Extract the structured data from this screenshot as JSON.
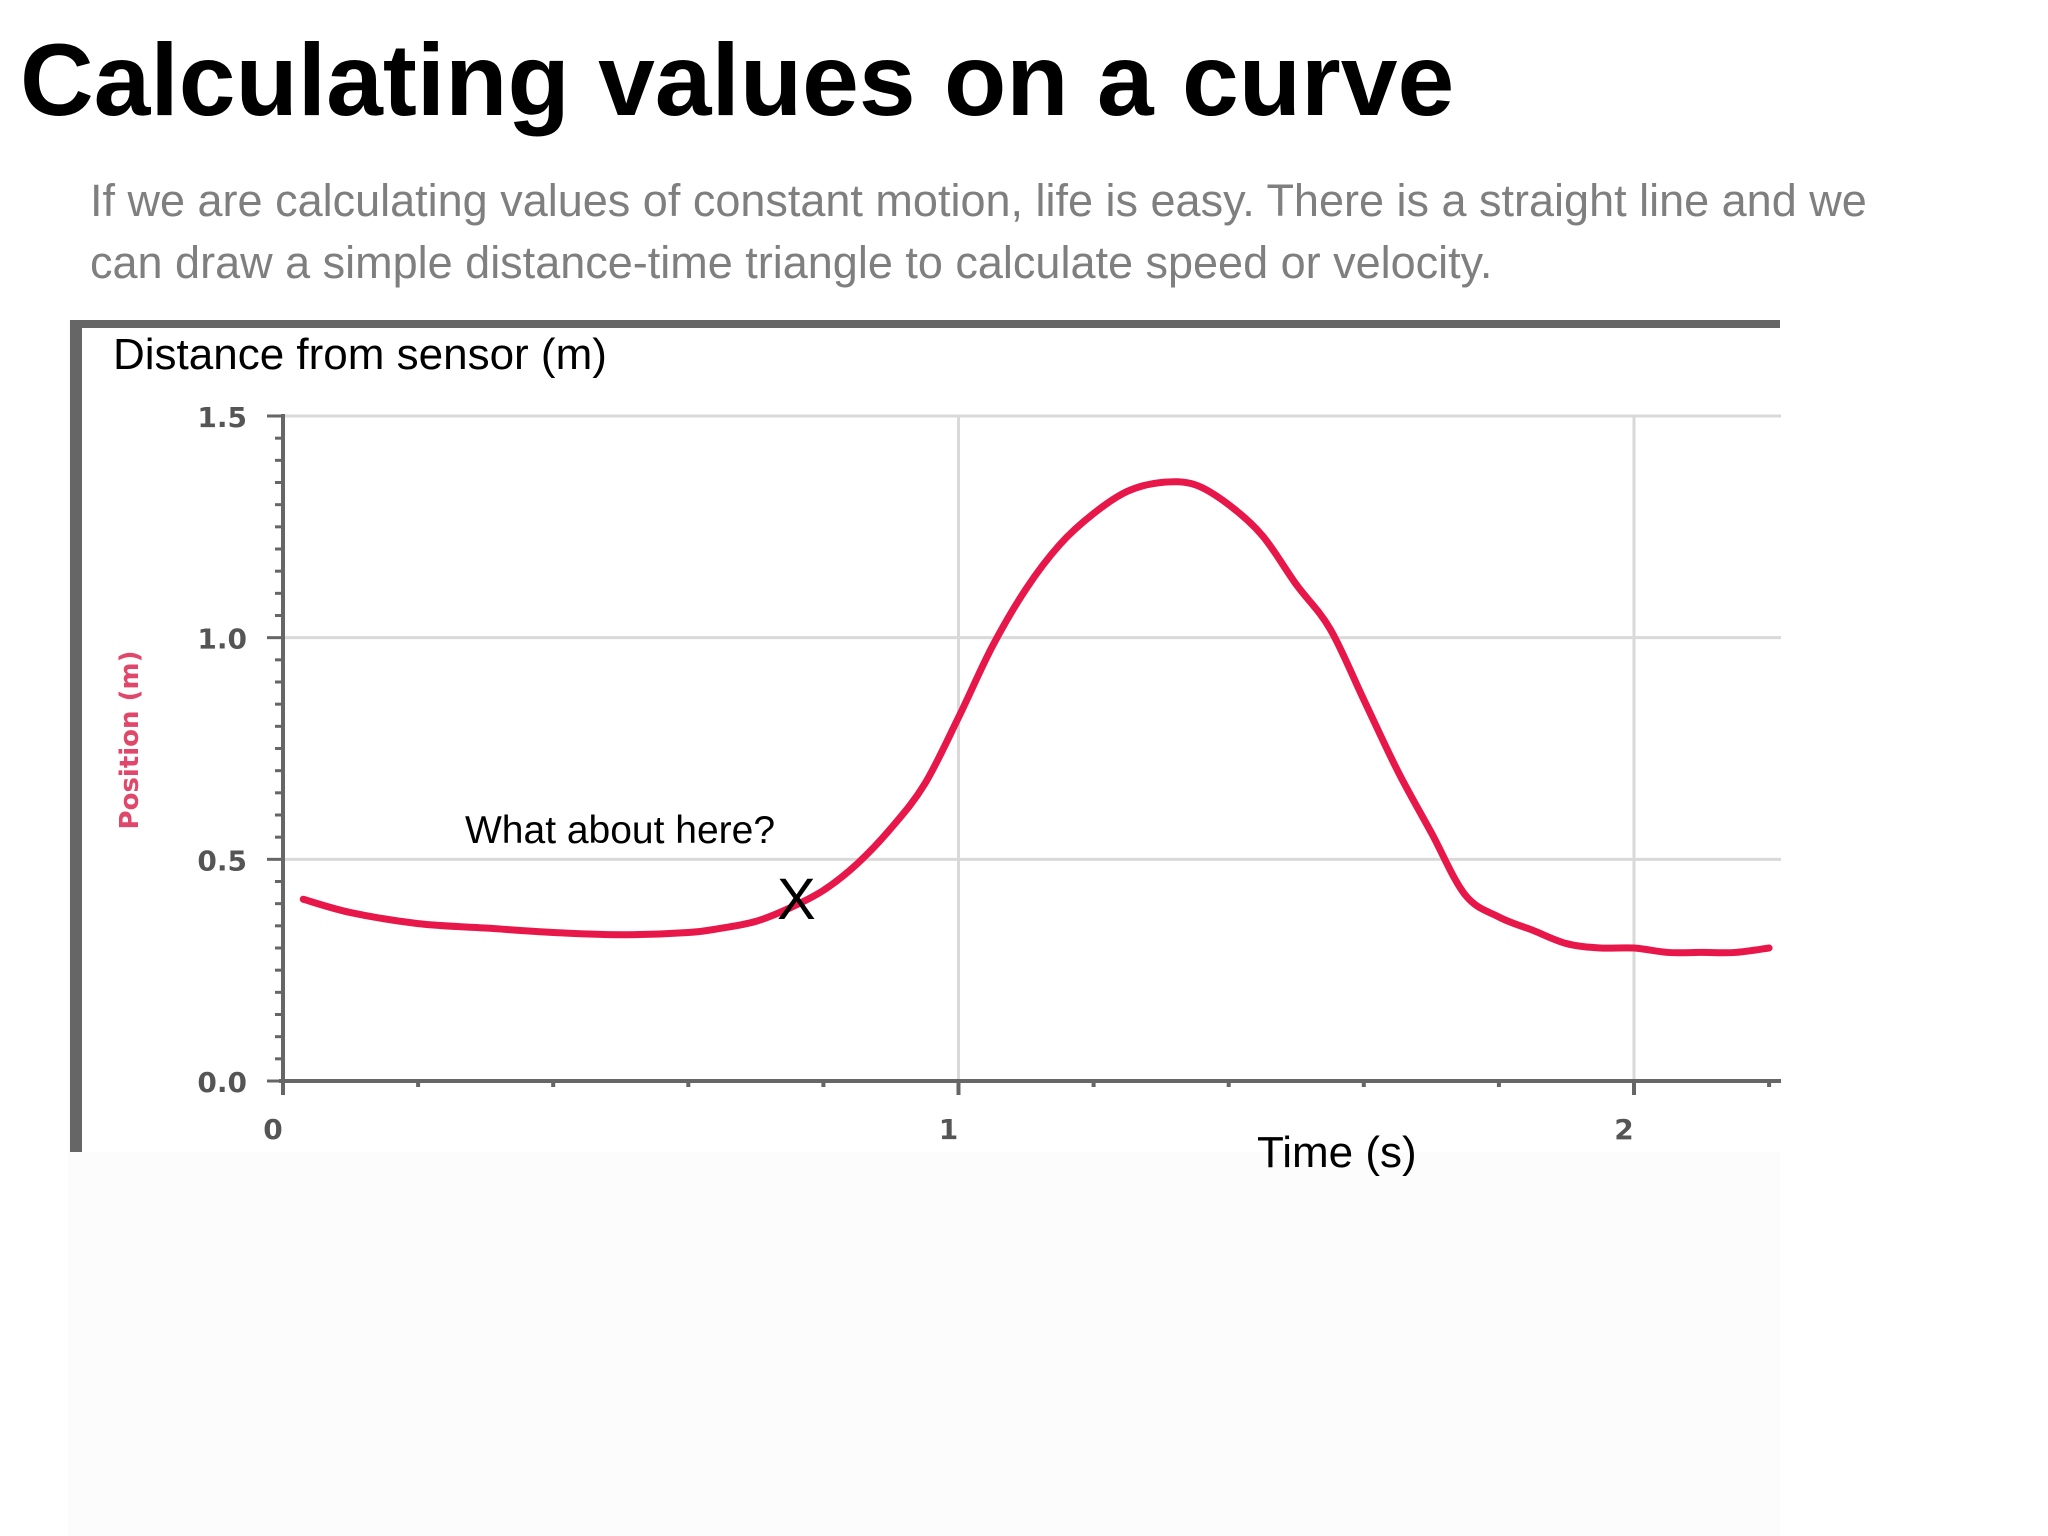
{
  "slide": {
    "title": "Calculating values on a curve",
    "body": "If we are calculating values of constant motion, life is easy. There is a straight line and we can draw a simple distance-time triangle to calculate speed or velocity."
  },
  "colors": {
    "curve": "#e8174a",
    "grid": "#d9d9d9",
    "axis": "#666666",
    "frame": "#666666",
    "body_text": "#7f7f7f"
  },
  "chart_data": {
    "type": "line",
    "xlabel": "Time (s)",
    "ylabel": "Position (m)",
    "overlay_ylabel": "Distance from sensor (m)",
    "xlim": [
      0,
      2.2
    ],
    "ylim": [
      0,
      1.5
    ],
    "x_ticks": [
      "0",
      "1",
      "2"
    ],
    "y_ticks": [
      "0.0",
      "0.5",
      "1.0",
      "1.5"
    ],
    "grid": true,
    "series": [
      {
        "x": [
          0.03,
          0.1,
          0.2,
          0.3,
          0.4,
          0.5,
          0.6,
          0.65,
          0.7,
          0.75,
          0.8,
          0.85,
          0.9,
          0.95,
          1.0,
          1.05,
          1.1,
          1.15,
          1.2,
          1.25,
          1.3,
          1.35,
          1.4,
          1.45,
          1.5,
          1.55,
          1.6,
          1.65,
          1.7,
          1.75,
          1.8,
          1.85,
          1.9,
          1.95,
          2.0,
          2.05,
          2.1,
          2.15,
          2.2
        ],
        "y": [
          0.41,
          0.38,
          0.355,
          0.345,
          0.335,
          0.33,
          0.335,
          0.345,
          0.36,
          0.39,
          0.43,
          0.49,
          0.57,
          0.67,
          0.82,
          0.98,
          1.11,
          1.21,
          1.28,
          1.33,
          1.35,
          1.345,
          1.3,
          1.23,
          1.12,
          1.02,
          0.86,
          0.7,
          0.56,
          0.42,
          0.37,
          0.34,
          0.31,
          0.3,
          0.3,
          0.29,
          0.29,
          0.29,
          0.3
        ]
      }
    ],
    "annotations": [
      {
        "text": "What about here?",
        "x": 0.54,
        "y": 0.52
      },
      {
        "text": "X",
        "x": 0.76,
        "y": 0.38
      }
    ]
  }
}
